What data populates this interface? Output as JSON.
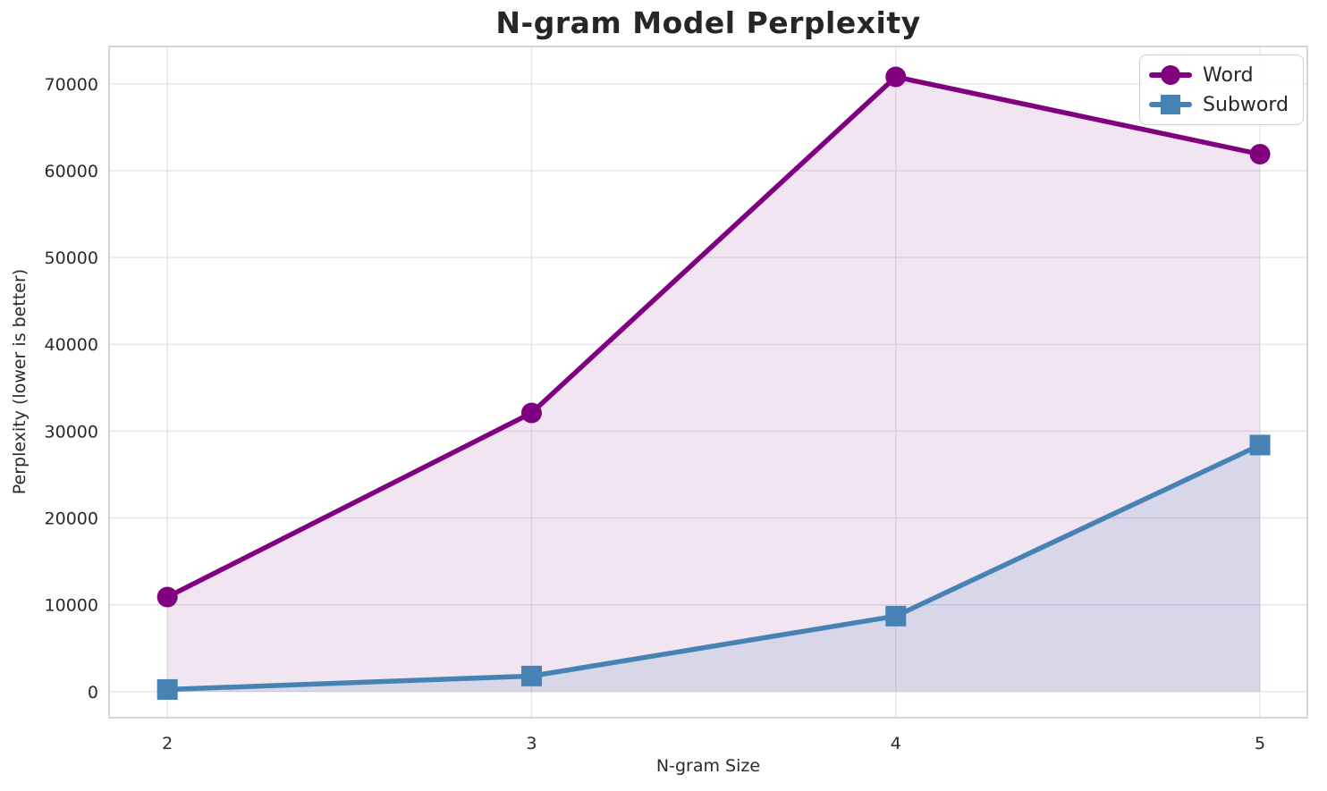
{
  "figure": {
    "title": "N-gram Model Perplexity"
  },
  "chart_data": {
    "type": "line",
    "title": "N-gram Model Perplexity",
    "xlabel": "N-gram Size",
    "ylabel": "Perplexity (lower is better)",
    "x": [
      2,
      3,
      4,
      5
    ],
    "series": [
      {
        "name": "Word",
        "marker": "circle",
        "color": "#800080",
        "fill_opacity": 0.1,
        "values": [
          10900,
          32100,
          70800,
          61900
        ]
      },
      {
        "name": "Subword",
        "marker": "square",
        "color": "#4682B4",
        "fill_opacity": 0.15,
        "values": [
          250,
          1800,
          8700,
          28400
        ]
      }
    ],
    "area_fill_to_zero": true,
    "xticks": [
      2,
      3,
      4,
      5
    ],
    "yticks": [
      0,
      10000,
      20000,
      30000,
      40000,
      50000,
      60000,
      70000
    ],
    "xlim": [
      1.84,
      5.13
    ],
    "ylim": [
      -3000,
      74300
    ],
    "grid": true,
    "legend_position": "upper right"
  },
  "style": {
    "grid_color": "#e4e4e8",
    "spine_color": "#c9c9c9",
    "background": "#ffffff",
    "text_color": "#2a2a2a"
  }
}
